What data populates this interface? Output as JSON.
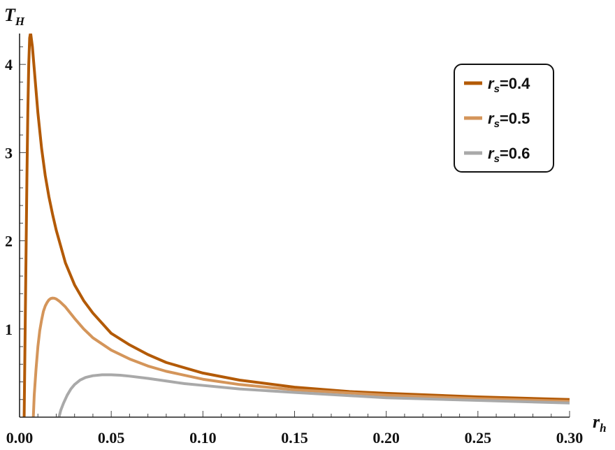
{
  "chart_data": {
    "type": "line",
    "xlabel": "r",
    "xlabel_sub": "h",
    "ylabel": "T",
    "ylabel_sub": "H",
    "xlim": [
      0,
      0.3
    ],
    "ylim": [
      0,
      4.35
    ],
    "xticks": [
      "0.00",
      "0.05",
      "0.10",
      "0.15",
      "0.20",
      "0.25",
      "0.30"
    ],
    "yticks": [
      "1",
      "2",
      "3",
      "4"
    ],
    "legend_position": "top-right",
    "colors": [
      "#b35a06",
      "#d4955a",
      "#a9a9a9"
    ],
    "series": [
      {
        "symbol": "r",
        "sub": "s",
        "value_text": "=0.4",
        "x": [
          0.0025,
          0.003,
          0.0035,
          0.004,
          0.0045,
          0.005,
          0.0055,
          0.006,
          0.007,
          0.008,
          0.009,
          0.01,
          0.012,
          0.014,
          0.016,
          0.018,
          0.02,
          0.025,
          0.03,
          0.035,
          0.04,
          0.05,
          0.06,
          0.07,
          0.08,
          0.1,
          0.12,
          0.15,
          0.18,
          0.2,
          0.25,
          0.3
        ],
        "y": [
          0,
          0.9,
          1.8,
          2.7,
          3.45,
          4.0,
          4.3,
          4.36,
          4.2,
          3.95,
          3.7,
          3.45,
          3.05,
          2.74,
          2.5,
          2.3,
          2.12,
          1.75,
          1.5,
          1.32,
          1.18,
          0.95,
          0.82,
          0.71,
          0.62,
          0.5,
          0.42,
          0.34,
          0.29,
          0.27,
          0.23,
          0.2
        ]
      },
      {
        "symbol": "r",
        "sub": "s",
        "value_text": "=0.5",
        "x": [
          0.0075,
          0.008,
          0.009,
          0.01,
          0.011,
          0.012,
          0.013,
          0.014,
          0.015,
          0.016,
          0.017,
          0.018,
          0.019,
          0.02,
          0.022,
          0.025,
          0.03,
          0.035,
          0.04,
          0.05,
          0.06,
          0.07,
          0.08,
          0.1,
          0.12,
          0.15,
          0.2,
          0.25,
          0.3
        ],
        "y": [
          0,
          0.25,
          0.55,
          0.8,
          0.98,
          1.1,
          1.2,
          1.26,
          1.3,
          1.33,
          1.345,
          1.35,
          1.348,
          1.34,
          1.31,
          1.25,
          1.12,
          1.0,
          0.9,
          0.76,
          0.66,
          0.58,
          0.52,
          0.43,
          0.37,
          0.31,
          0.25,
          0.21,
          0.18
        ]
      },
      {
        "symbol": "r",
        "sub": "s",
        "value_text": "=0.6",
        "x": [
          0.0215,
          0.0225,
          0.024,
          0.026,
          0.028,
          0.03,
          0.033,
          0.036,
          0.04,
          0.045,
          0.05,
          0.055,
          0.06,
          0.07,
          0.08,
          0.09,
          0.1,
          0.12,
          0.15,
          0.2,
          0.25,
          0.3
        ],
        "y": [
          0,
          0.08,
          0.16,
          0.25,
          0.32,
          0.37,
          0.42,
          0.45,
          0.47,
          0.48,
          0.48,
          0.475,
          0.465,
          0.44,
          0.41,
          0.38,
          0.36,
          0.32,
          0.28,
          0.22,
          0.19,
          0.16
        ]
      }
    ]
  }
}
